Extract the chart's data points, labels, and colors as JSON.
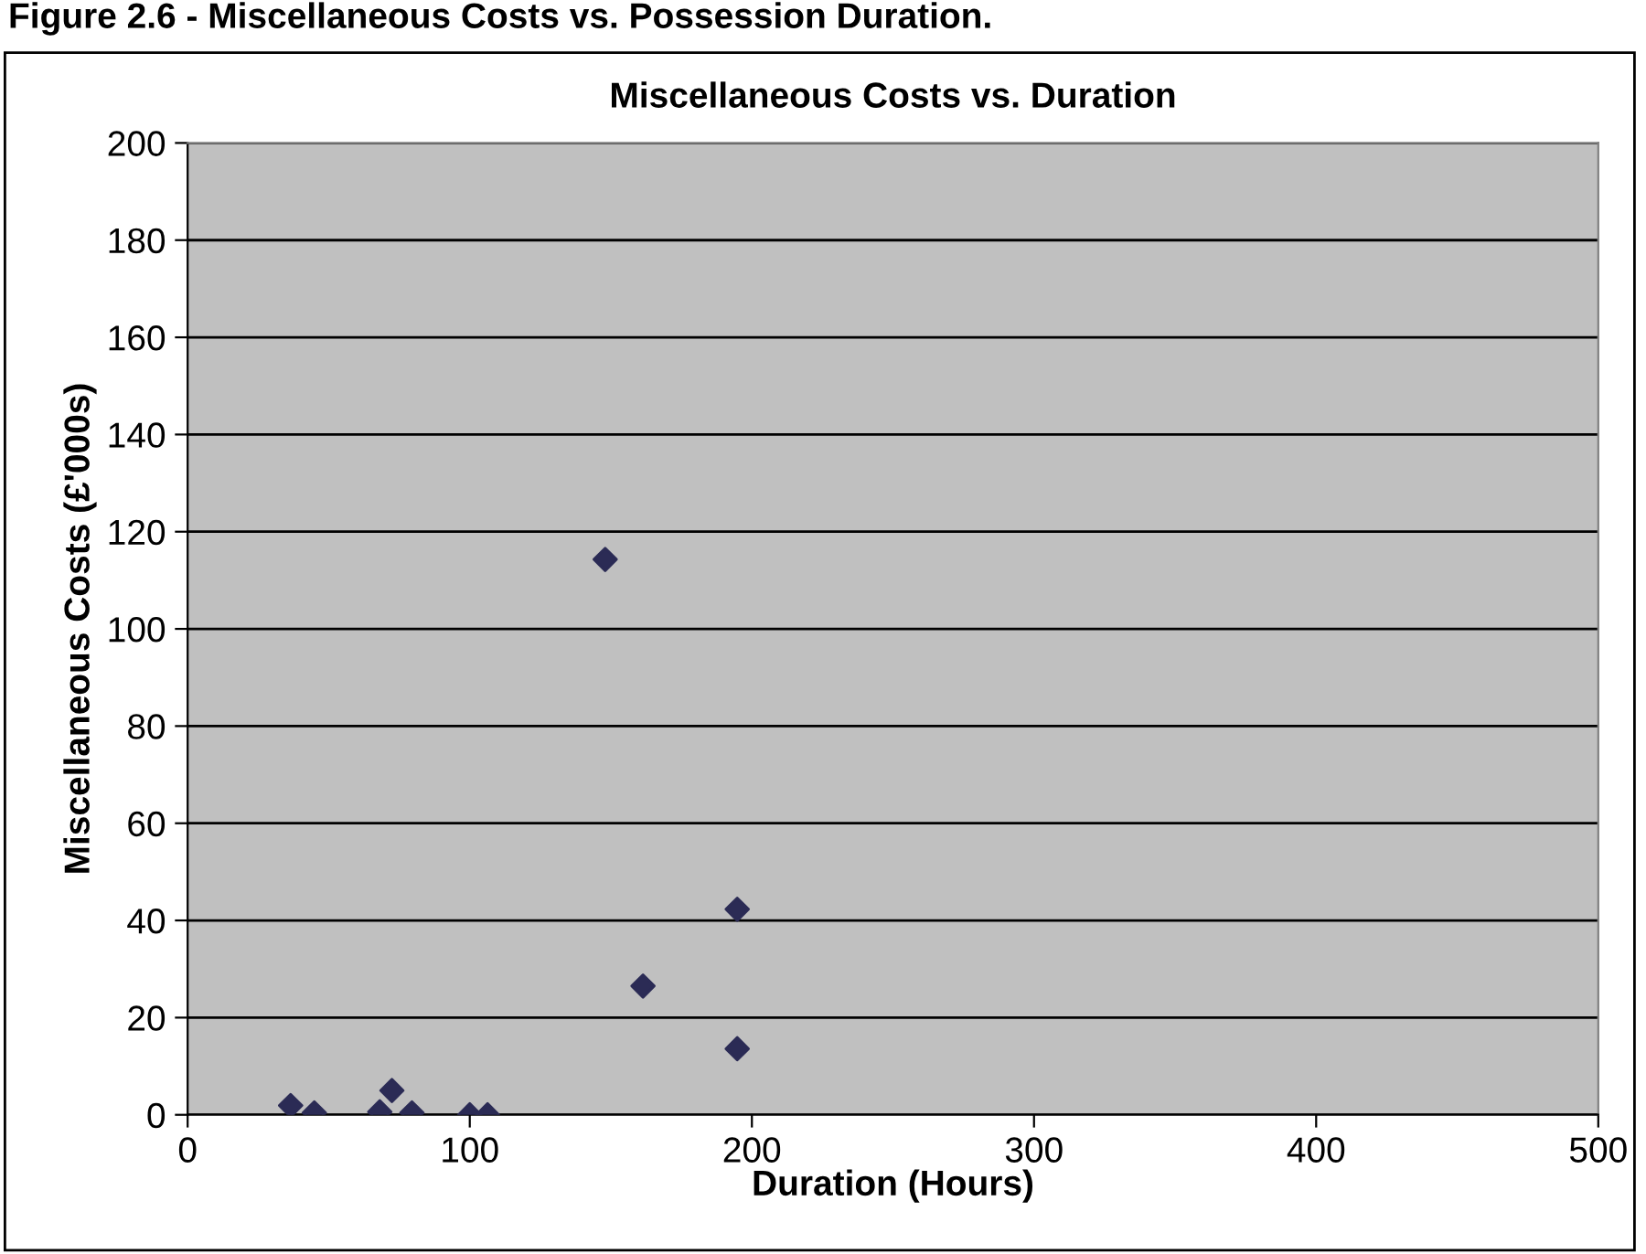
{
  "chart_data": {
    "type": "scatter",
    "title": "Miscellaneous Costs vs. Duration",
    "annotations": [
      "Figure 2.6 - Miscellaneous Costs vs. Possession Duration."
    ],
    "xlabel": "Duration (Hours)",
    "ylabel": "Miscellaneous Costs (£'000s)",
    "x": [
      36.5,
      44.9,
      68.1,
      72.4,
      79.5,
      100,
      106.3,
      148,
      161.4,
      194.8,
      194.8
    ],
    "series": [
      {
        "color": "#2b2b55",
        "values": [
          1.9,
          0.4,
          0.6,
          5,
          0.4,
          0,
          0,
          114.3,
          26.5,
          42.3,
          13.6
        ]
      }
    ],
    "xlim": [
      0,
      500
    ],
    "xticks": [
      0,
      100,
      200,
      300,
      400,
      500
    ],
    "ylim": [
      0,
      200
    ],
    "yticks": [
      0,
      20,
      40,
      60,
      80,
      100,
      120,
      140,
      160,
      180,
      200
    ],
    "grid": "y",
    "marker": "diamond",
    "legend": false
  }
}
